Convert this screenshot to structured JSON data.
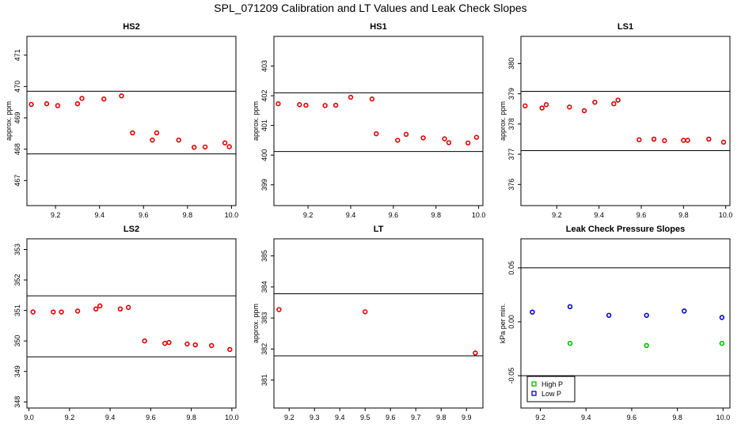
{
  "figure": {
    "title": "SPL_071209  Calibration and LT Values and Leak Check Slopes"
  },
  "chart_data": [
    {
      "type": "scatter",
      "title": "HS2",
      "xlabel": "",
      "ylabel": "approx. ppm",
      "xlim": [
        9.07,
        10.02
      ],
      "ylim": [
        466.2,
        471.6
      ],
      "xticks": [
        9.2,
        9.4,
        9.6,
        9.8,
        10.0
      ],
      "yticks": [
        467,
        468,
        469,
        470,
        471
      ],
      "hlines": [
        469.85,
        467.85
      ],
      "series": [
        {
          "name": "calibration",
          "color": "#dd0000",
          "x": [
            9.09,
            9.16,
            9.21,
            9.3,
            9.32,
            9.42,
            9.5,
            9.55,
            9.64,
            9.66,
            9.76,
            9.83,
            9.88,
            9.97,
            9.99
          ],
          "y": [
            469.43,
            469.45,
            469.39,
            469.45,
            469.62,
            469.6,
            469.7,
            468.52,
            468.29,
            468.52,
            468.29,
            468.06,
            468.07,
            468.2,
            468.08
          ]
        }
      ]
    },
    {
      "type": "scatter",
      "title": "HS1",
      "xlabel": "",
      "ylabel": "approx. ppm",
      "xlim": [
        9.04,
        10.02
      ],
      "ylim": [
        398.3,
        404.0
      ],
      "xticks": [
        9.2,
        9.4,
        9.6,
        9.8,
        10.0
      ],
      "yticks": [
        399,
        400,
        401,
        402,
        403
      ],
      "hlines": [
        402.1,
        400.12
      ],
      "series": [
        {
          "name": "calibration",
          "color": "#dd0000",
          "x": [
            9.06,
            9.16,
            9.19,
            9.28,
            9.33,
            9.4,
            9.5,
            9.52,
            9.62,
            9.66,
            9.74,
            9.84,
            9.86,
            9.95,
            9.99
          ],
          "y": [
            401.73,
            401.7,
            401.68,
            401.67,
            401.68,
            401.95,
            401.89,
            400.72,
            400.5,
            400.7,
            400.58,
            400.55,
            400.42,
            400.41,
            400.6
          ]
        }
      ]
    },
    {
      "type": "scatter",
      "title": "LS1",
      "xlabel": "",
      "ylabel": "approx. ppm",
      "xlim": [
        9.03,
        10.02
      ],
      "ylim": [
        375.3,
        380.9
      ],
      "xticks": [
        9.2,
        9.4,
        9.6,
        9.8,
        10.0
      ],
      "yticks": [
        376,
        377,
        378,
        379,
        380
      ],
      "hlines": [
        379.08,
        377.12
      ],
      "series": [
        {
          "name": "calibration",
          "color": "#dd0000",
          "x": [
            9.05,
            9.13,
            9.15,
            9.26,
            9.33,
            9.38,
            9.47,
            9.49,
            9.59,
            9.66,
            9.71,
            9.8,
            9.82,
            9.92,
            9.99
          ],
          "y": [
            378.6,
            378.53,
            378.64,
            378.56,
            378.44,
            378.72,
            378.67,
            378.79,
            377.48,
            377.5,
            377.45,
            377.46,
            377.46,
            377.5,
            377.4
          ]
        }
      ]
    },
    {
      "type": "scatter",
      "title": "LS2",
      "xlabel": "",
      "ylabel": "",
      "xlim": [
        8.99,
        10.02
      ],
      "ylim": [
        347.8,
        353.35
      ],
      "xticks": [
        9.0,
        9.2,
        9.4,
        9.6,
        9.8,
        10.0
      ],
      "yticks": [
        348,
        349,
        350,
        351,
        352,
        353
      ],
      "hlines": [
        351.48,
        349.48
      ],
      "series": [
        {
          "name": "calibration",
          "color": "#dd0000",
          "x": [
            9.02,
            9.12,
            9.16,
            9.24,
            9.33,
            9.35,
            9.45,
            9.49,
            9.57,
            9.67,
            9.69,
            9.78,
            9.82,
            9.9,
            9.99
          ],
          "y": [
            350.95,
            350.95,
            350.95,
            350.98,
            351.05,
            351.15,
            351.05,
            351.1,
            350.0,
            349.92,
            349.95,
            349.9,
            349.87,
            349.85,
            349.72
          ]
        }
      ]
    },
    {
      "type": "scatter",
      "title": "LT",
      "xlabel": "",
      "ylabel": "approx. ppm",
      "xlim": [
        9.14,
        9.965
      ],
      "ylim": [
        380.1,
        385.55
      ],
      "xticks": [
        9.2,
        9.3,
        9.4,
        9.5,
        9.6,
        9.7,
        9.8,
        9.9
      ],
      "yticks": [
        381,
        382,
        383,
        384,
        385
      ],
      "hlines": [
        383.78,
        381.78
      ],
      "series": [
        {
          "name": "LT",
          "color": "#dd0000",
          "x": [
            9.16,
            9.5,
            9.935
          ],
          "y": [
            383.27,
            383.2,
            381.87
          ]
        }
      ]
    },
    {
      "type": "scatter",
      "title": "Leak Check Pressure Slopes",
      "xlabel": "",
      "ylabel": "kPa per min.",
      "xlim": [
        9.115,
        10.03
      ],
      "ylim": [
        -0.08,
        0.077
      ],
      "xticks": [
        9.2,
        9.4,
        9.6,
        9.8,
        10.0
      ],
      "yticks": [
        -0.05,
        0.0,
        0.05
      ],
      "yticklabels": [
        "-0.05",
        "0.00",
        "0.05"
      ],
      "hlines": [
        0.05,
        -0.05
      ],
      "legend": {
        "position": "bottom-left"
      },
      "series": [
        {
          "name": "High P",
          "color": "#00bb00",
          "x": [
            9.33,
            9.665,
            9.995
          ],
          "y": [
            -0.02,
            -0.022,
            -0.02
          ]
        },
        {
          "name": "Low P",
          "color": "#0000cc",
          "x": [
            9.165,
            9.33,
            9.5,
            9.665,
            9.83,
            9.995
          ],
          "y": [
            0.009,
            0.014,
            0.006,
            0.006,
            0.01,
            0.004
          ]
        }
      ]
    }
  ]
}
